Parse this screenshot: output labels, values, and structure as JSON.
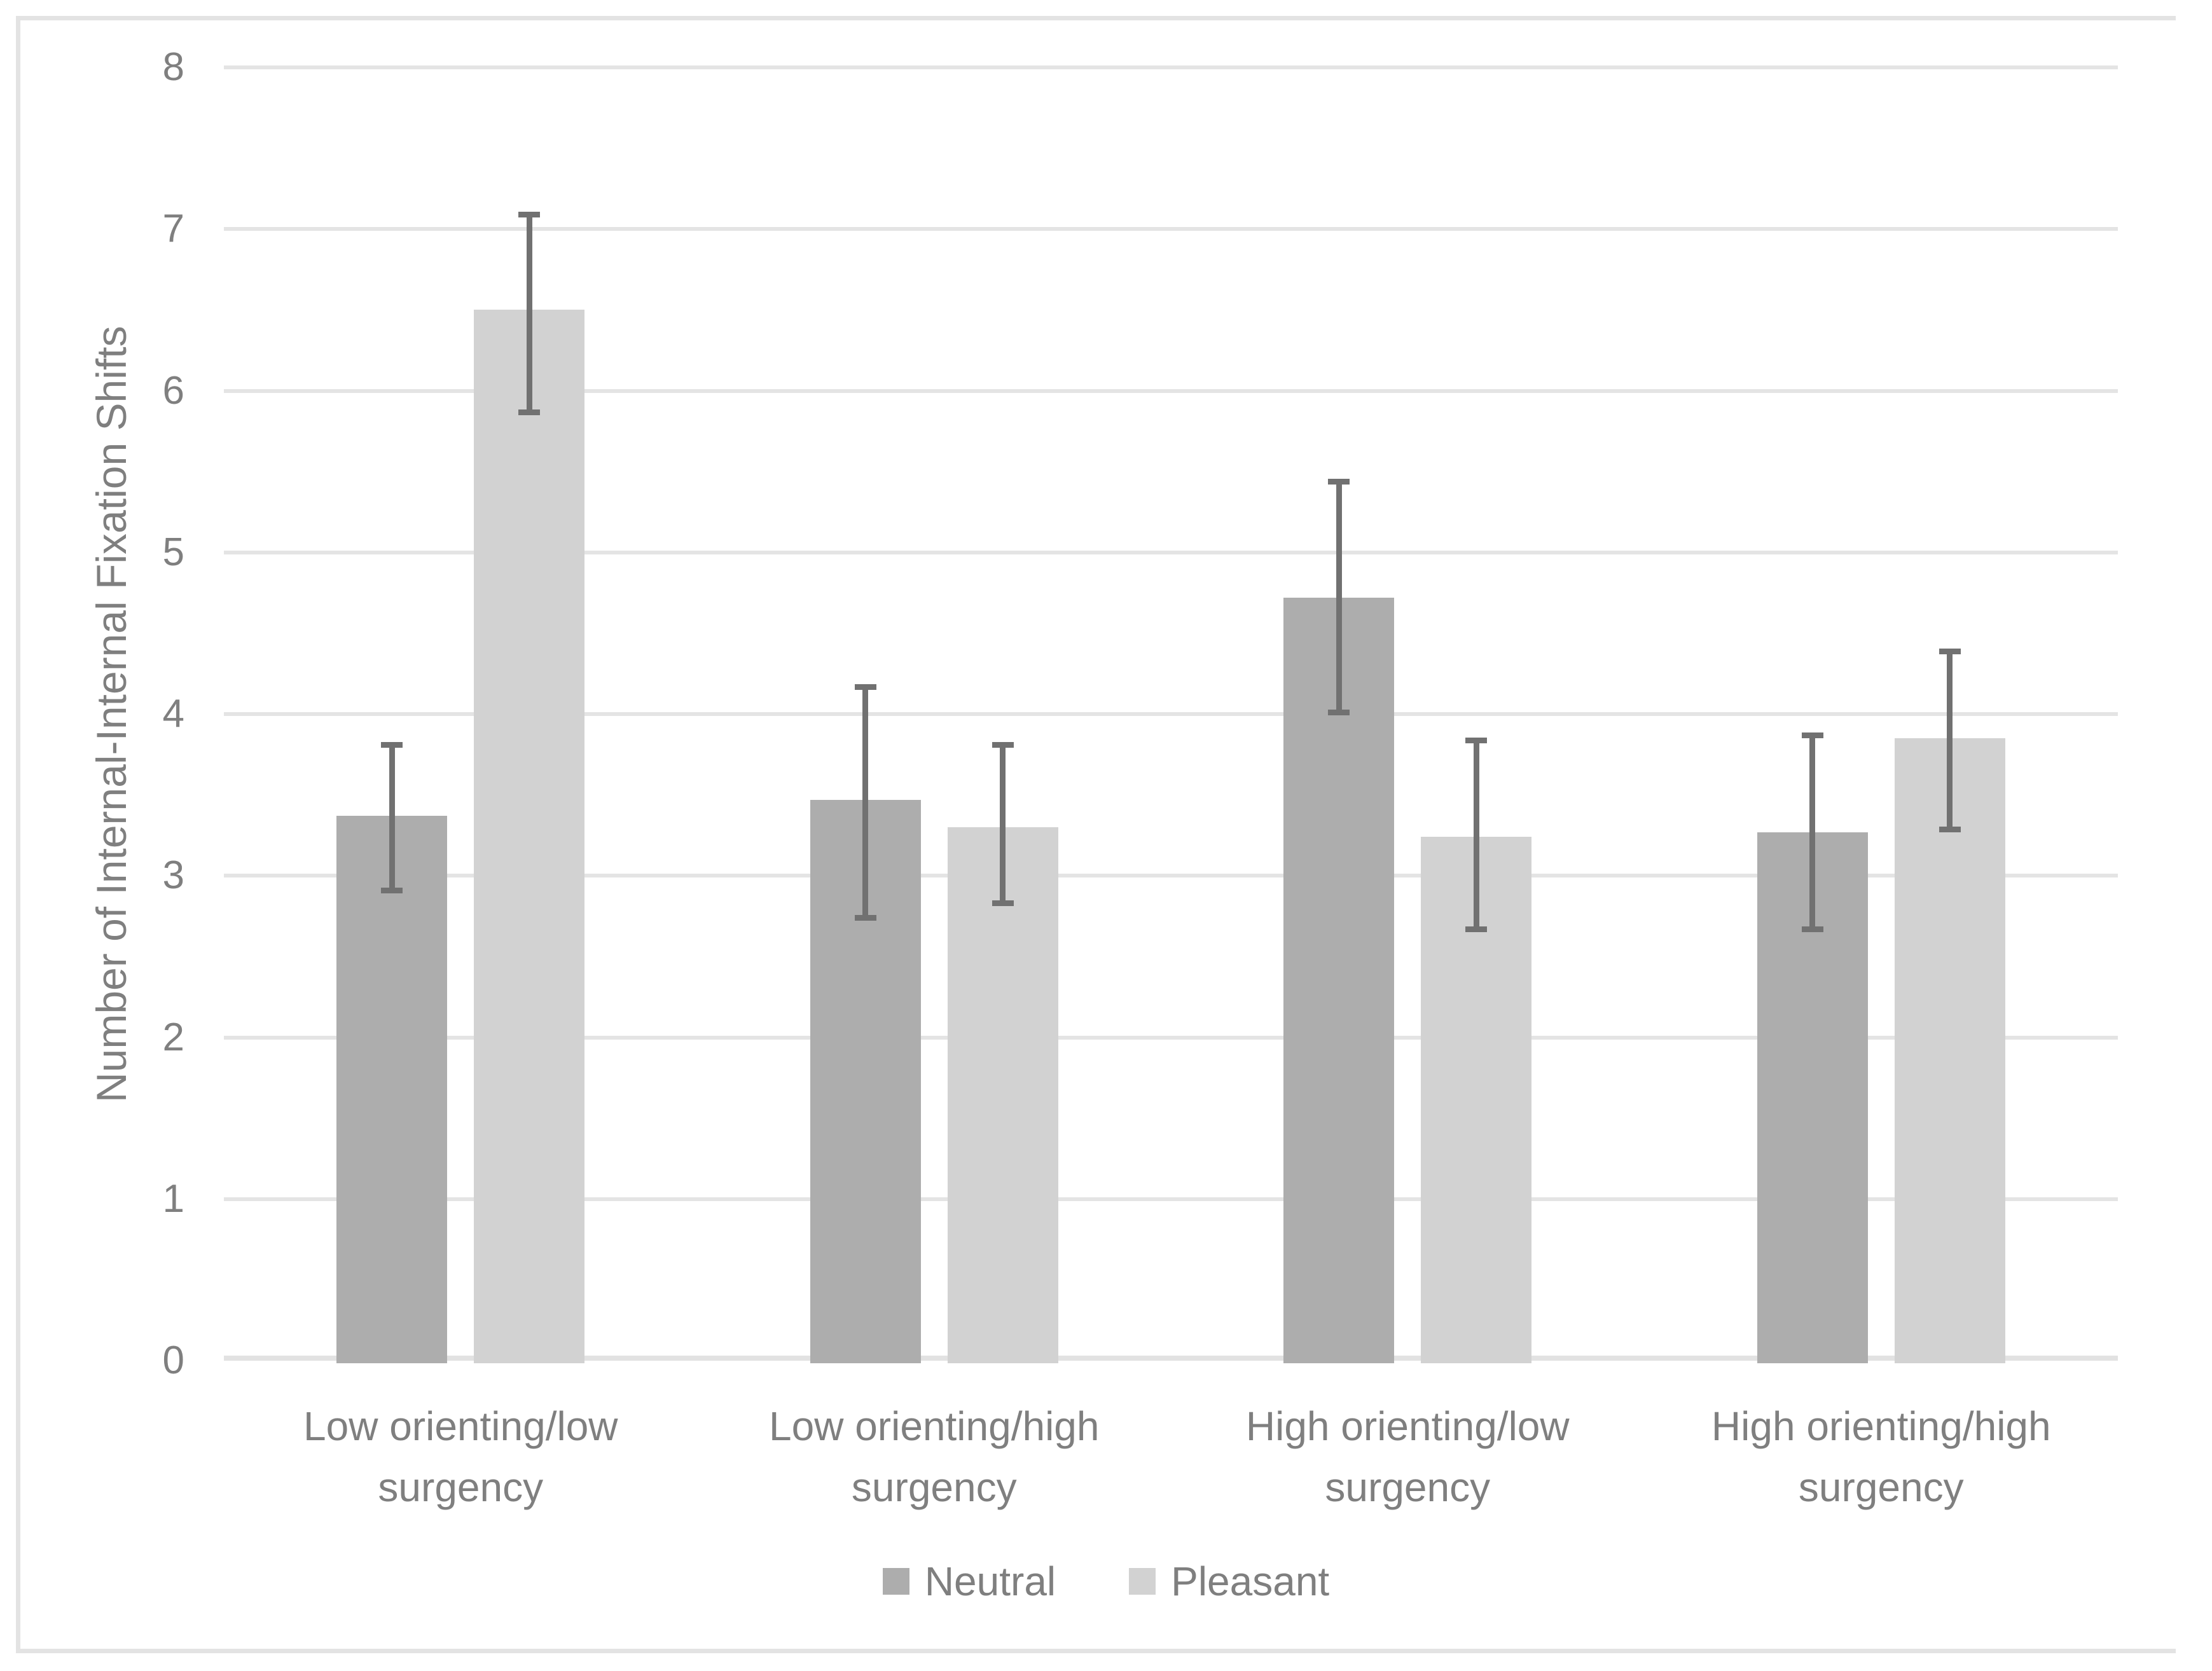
{
  "colors": {
    "neutral_bar": "#adadad",
    "pleasant_bar": "#d2d2d2",
    "error_bar": "#717171",
    "gridline": "#e4e4e4",
    "axis_line": "#e2e2e2",
    "text": "#7f7f7f",
    "figure_border": "#e3e3e3",
    "background": "#ffffff"
  },
  "chart_data": {
    "type": "bar",
    "ylabel": "Number of Internal-Internal Fixation Shifts",
    "ylim": [
      0,
      8
    ],
    "ytick_labels": [
      "0",
      "1",
      "2",
      "3",
      "4",
      "5",
      "6",
      "7",
      "8"
    ],
    "grid": true,
    "legend_position": "bottom",
    "categories": [
      "Low orienting/low surgency",
      "Low orienting/high surgency",
      "High orienting/low surgency",
      "High orienting/high surgency"
    ],
    "series": [
      {
        "name": "Neutral",
        "color": "#adadad",
        "values": [
          3.37,
          3.47,
          4.72,
          3.27
        ],
        "error_low": [
          2.91,
          2.74,
          4.01,
          2.67
        ],
        "error_high": [
          3.81,
          4.17,
          5.44,
          3.87
        ]
      },
      {
        "name": "Pleasant",
        "color": "#d2d2d2",
        "values": [
          6.5,
          3.3,
          3.24,
          3.85
        ],
        "error_low": [
          5.87,
          2.83,
          2.67,
          3.29
        ],
        "error_high": [
          7.09,
          3.81,
          3.84,
          4.39
        ]
      }
    ]
  }
}
